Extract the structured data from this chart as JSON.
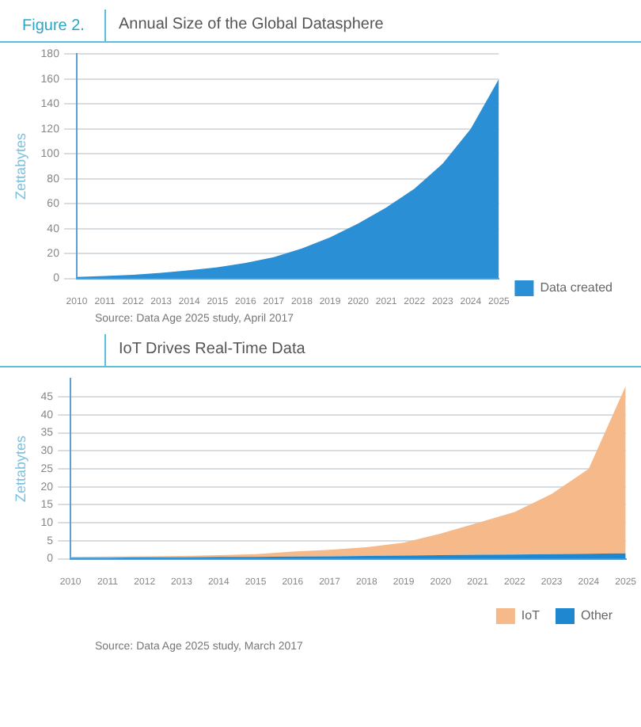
{
  "chart_data": [
    {
      "type": "area",
      "title": "Annual Size of the Global Datasphere",
      "ylabel": "Zettabytes",
      "annotations": [
        "Figure 2.",
        "Source: Data Age 2025 study, April 2017"
      ],
      "categories": [
        "2010",
        "2011",
        "2012",
        "2013",
        "2014",
        "2015",
        "2016",
        "2017",
        "2018",
        "2019",
        "2020",
        "2021",
        "2022",
        "2023",
        "2024",
        "2025"
      ],
      "series": [
        {
          "name": "Data created",
          "color": "#2a8fd4",
          "values": [
            1.2,
            2,
            3,
            4.5,
            6.5,
            9,
            12.5,
            17,
            24,
            33,
            44,
            57,
            72,
            92,
            120,
            160
          ]
        }
      ],
      "ylim": [
        0,
        180
      ],
      "yticks": [
        0,
        20,
        40,
        60,
        80,
        100,
        120,
        140,
        160,
        180
      ],
      "grid": "y",
      "legend": "right"
    },
    {
      "type": "area",
      "title": "IoT Drives Real-Time Data",
      "ylabel": "Zettabytes",
      "annotations": [
        "Source: Data Age 2025 study, March 2017"
      ],
      "categories": [
        "2010",
        "2011",
        "2012",
        "2013",
        "2014",
        "2015",
        "2016",
        "2017",
        "2018",
        "2019",
        "2020",
        "2021",
        "2022",
        "2023",
        "2024",
        "2025"
      ],
      "stacked": true,
      "series": [
        {
          "name": "Other",
          "color": "#1f87d0",
          "values": [
            0.3,
            0.3,
            0.4,
            0.4,
            0.5,
            0.5,
            0.6,
            0.7,
            0.8,
            0.9,
            1,
            1.1,
            1.2,
            1.3,
            1.4,
            1.5
          ]
        },
        {
          "name": "IoT",
          "color": "#f5b98a",
          "values": [
            0.2,
            0.3,
            0.3,
            0.4,
            0.5,
            0.8,
            1.4,
            1.8,
            2.4,
            3.6,
            6,
            8.9,
            11.8,
            16.7,
            23.6,
            46.5
          ]
        }
      ],
      "ylim": [
        0,
        50
      ],
      "yticks": [
        0,
        5,
        10,
        15,
        20,
        25,
        30,
        35,
        40,
        45
      ],
      "grid": "y",
      "legend": "bottom right"
    }
  ]
}
